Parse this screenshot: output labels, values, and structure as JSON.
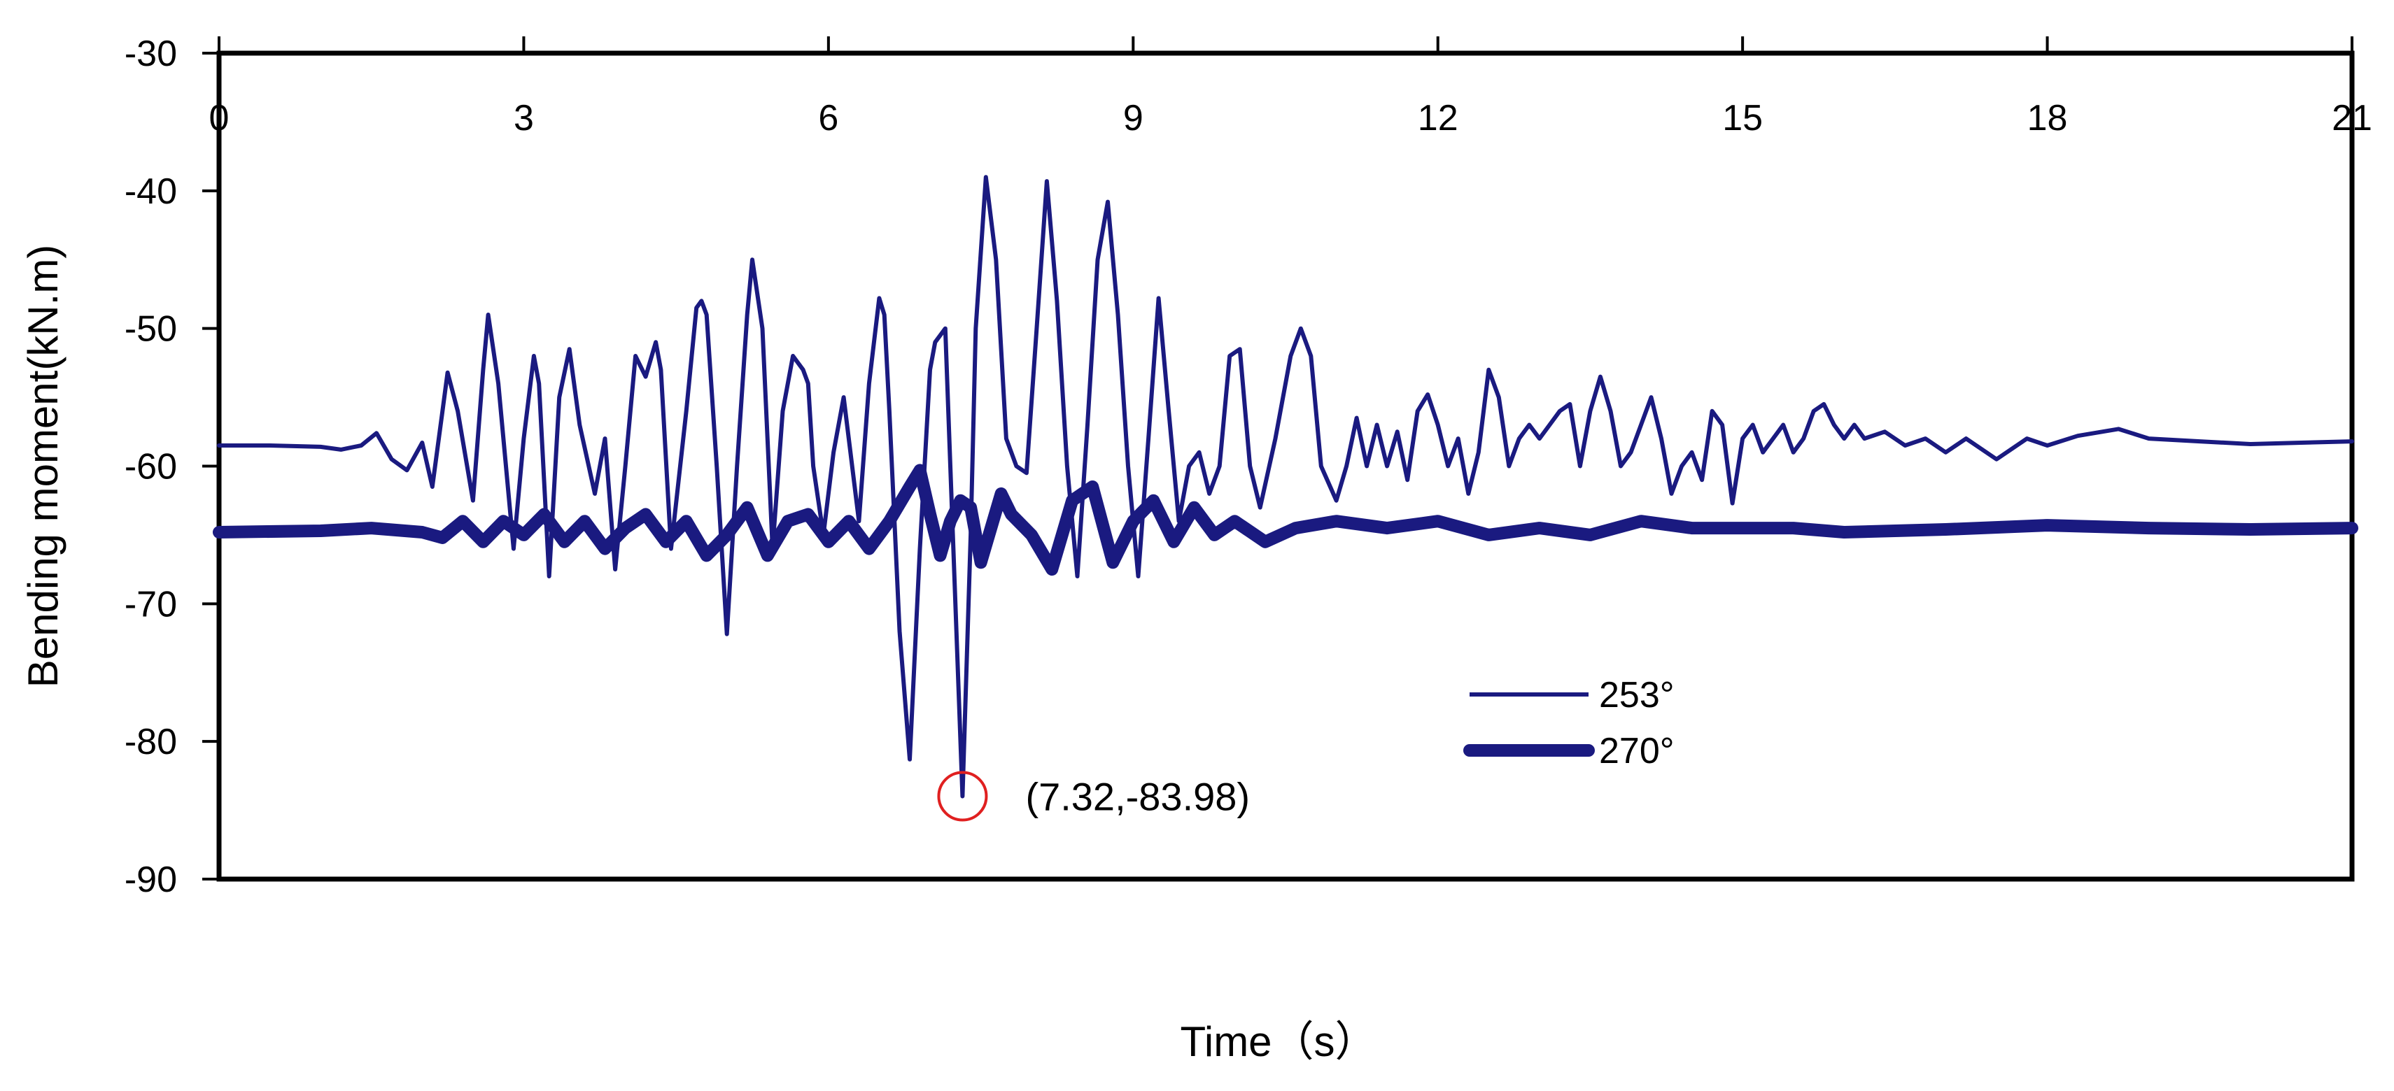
{
  "chart_data": {
    "type": "line",
    "title": "",
    "xlabel": "Time（s）",
    "ylabel": "Bending moment(kN.m)",
    "xlim": [
      0,
      21
    ],
    "ylim": [
      -90,
      -30
    ],
    "x_ticks": [
      0,
      3,
      6,
      9,
      12,
      15,
      18,
      21
    ],
    "x_tick_labels": [
      "0",
      "3",
      "6",
      "9",
      "12",
      "15",
      "18",
      "21"
    ],
    "x_axis_position": "top",
    "y_ticks": [
      -30,
      -40,
      -50,
      -60,
      -70,
      -80,
      -90
    ],
    "y_tick_labels": [
      "-30",
      "-40",
      "-50",
      "-60",
      "-70",
      "-80",
      "-90"
    ],
    "y_axis_reversed": true,
    "grid": false,
    "legend_position": "bottom-center",
    "line_color": "#1a1a80",
    "annotation": {
      "text": "(7.32,-83.98)",
      "x": 7.32,
      "y": -83.98,
      "marker_color": "#e02020"
    },
    "series": [
      {
        "name": "253°",
        "style": "thin",
        "x": [
          0.0,
          0.5,
          1.0,
          1.2,
          1.4,
          1.55,
          1.7,
          1.85,
          2.0,
          2.1,
          2.2,
          2.25,
          2.35,
          2.5,
          2.6,
          2.65,
          2.75,
          2.9,
          3.0,
          3.1,
          3.15,
          3.25,
          3.35,
          3.45,
          3.55,
          3.7,
          3.8,
          3.9,
          4.0,
          4.1,
          4.2,
          4.3,
          4.35,
          4.45,
          4.6,
          4.7,
          4.75,
          4.8,
          4.9,
          5.0,
          5.1,
          5.2,
          5.25,
          5.35,
          5.45,
          5.55,
          5.65,
          5.75,
          5.8,
          5.85,
          5.95,
          6.05,
          6.15,
          6.3,
          6.4,
          6.5,
          6.55,
          6.6,
          6.7,
          6.8,
          6.9,
          7.0,
          7.05,
          7.15,
          7.2,
          7.32,
          7.4,
          7.45,
          7.55,
          7.65,
          7.75,
          7.85,
          7.95,
          8.05,
          8.15,
          8.25,
          8.35,
          8.45,
          8.55,
          8.65,
          8.75,
          8.85,
          8.95,
          9.05,
          9.15,
          9.25,
          9.35,
          9.45,
          9.55,
          9.65,
          9.75,
          9.85,
          9.95,
          10.05,
          10.15,
          10.25,
          10.4,
          10.55,
          10.65,
          10.75,
          10.85,
          11.0,
          11.1,
          11.2,
          11.3,
          11.4,
          11.5,
          11.6,
          11.7,
          11.8,
          11.9,
          12.0,
          12.1,
          12.2,
          12.3,
          12.4,
          12.5,
          12.6,
          12.7,
          12.8,
          12.9,
          13.0,
          13.1,
          13.2,
          13.3,
          13.4,
          13.5,
          13.6,
          13.7,
          13.8,
          13.9,
          14.0,
          14.1,
          14.2,
          14.3,
          14.4,
          14.5,
          14.6,
          14.7,
          14.8,
          14.9,
          15.0,
          15.1,
          15.2,
          15.3,
          15.4,
          15.5,
          15.6,
          15.7,
          15.8,
          15.9,
          16.0,
          16.1,
          16.2,
          16.4,
          16.6,
          16.8,
          17.0,
          17.2,
          17.5,
          17.8,
          18.0,
          18.3,
          18.7,
          19.0,
          19.5,
          20.0,
          20.5,
          21.0
        ],
        "y": [
          -58.5,
          -58.5,
          -58.6,
          -58.8,
          -58.5,
          -57.6,
          -59.5,
          -60.3,
          -58.3,
          -61.5,
          -56.0,
          -53.2,
          -56.0,
          -62.5,
          -53.0,
          -49.0,
          -54.0,
          -66.0,
          -58.0,
          -52.0,
          -54.0,
          -68.0,
          -55.0,
          -51.5,
          -57.0,
          -62.0,
          -58.0,
          -67.5,
          -60.0,
          -52.0,
          -53.5,
          -51.0,
          -53.0,
          -66.0,
          -56.0,
          -48.5,
          -48.0,
          -49.0,
          -60.0,
          -72.2,
          -60.0,
          -49.0,
          -45.0,
          -50.0,
          -66.0,
          -56.0,
          -52.0,
          -53.0,
          -54.0,
          -60.0,
          -65.0,
          -59.0,
          -55.0,
          -64.0,
          -54.0,
          -47.8,
          -49.0,
          -56.0,
          -72.0,
          -81.3,
          -66.0,
          -53.0,
          -51.0,
          -50.0,
          -60.0,
          -83.98,
          -65.0,
          -50.0,
          -39.0,
          -45.0,
          -58.0,
          -60.0,
          -60.5,
          -50.0,
          -39.3,
          -48.0,
          -60.0,
          -68.0,
          -57.0,
          -45.0,
          -40.8,
          -49.0,
          -60.0,
          -68.0,
          -58.0,
          -47.8,
          -56.0,
          -64.0,
          -60.0,
          -59.0,
          -62.0,
          -60.0,
          -52.0,
          -51.5,
          -60.0,
          -63.0,
          -58.0,
          -52.0,
          -50.0,
          -52.0,
          -60.0,
          -62.5,
          -60.0,
          -56.5,
          -60.0,
          -57.0,
          -60.0,
          -57.5,
          -61.0,
          -56.0,
          -54.8,
          -57.0,
          -60.0,
          -58.0,
          -62.0,
          -59.0,
          -53.0,
          -55.0,
          -60.0,
          -58.0,
          -57.0,
          -58.0,
          -57.0,
          -56.0,
          -55.5,
          -60.0,
          -56.0,
          -53.5,
          -56.0,
          -60.0,
          -59.0,
          -57.0,
          -55.0,
          -58.0,
          -62.0,
          -60.0,
          -59.0,
          -61.0,
          -56.0,
          -57.0,
          -62.7,
          -58.0,
          -57.0,
          -59.0,
          -58.0,
          -57.0,
          -59.0,
          -58.0,
          -56.0,
          -55.5,
          -57.0,
          -58.0,
          -57.0,
          -58.0,
          -57.5,
          -58.5,
          -58.0,
          -59.0,
          -58.0,
          -59.5,
          -58.0,
          -58.5,
          -57.8,
          -57.3,
          -58.0,
          -58.2,
          -58.4,
          -58.3,
          -58.2
        ]
      },
      {
        "name": "270°",
        "style": "thick",
        "x": [
          0.0,
          1.0,
          1.5,
          2.0,
          2.2,
          2.4,
          2.6,
          2.8,
          3.0,
          3.2,
          3.4,
          3.6,
          3.8,
          4.0,
          4.2,
          4.4,
          4.6,
          4.8,
          5.0,
          5.2,
          5.4,
          5.6,
          5.8,
          6.0,
          6.2,
          6.4,
          6.6,
          6.8,
          6.9,
          7.0,
          7.1,
          7.2,
          7.3,
          7.4,
          7.5,
          7.6,
          7.7,
          7.8,
          8.0,
          8.2,
          8.4,
          8.6,
          8.8,
          9.0,
          9.2,
          9.4,
          9.6,
          9.8,
          10.0,
          10.3,
          10.6,
          11.0,
          11.5,
          12.0,
          12.5,
          13.0,
          13.5,
          14.0,
          14.5,
          15.0,
          15.5,
          16.0,
          17.0,
          18.0,
          19.0,
          20.0,
          21.0
        ],
        "y": [
          -64.8,
          -64.7,
          -64.5,
          -64.8,
          -65.2,
          -64.0,
          -65.5,
          -64.0,
          -65.0,
          -63.5,
          -65.5,
          -64.0,
          -66.0,
          -64.5,
          -63.5,
          -65.5,
          -64.0,
          -66.5,
          -65.0,
          -63.0,
          -66.5,
          -64.0,
          -63.5,
          -65.5,
          -64.0,
          -66.0,
          -64.0,
          -61.5,
          -60.3,
          -63.5,
          -66.5,
          -64.0,
          -62.5,
          -63.0,
          -67.0,
          -64.5,
          -62.0,
          -63.5,
          -65.0,
          -67.5,
          -62.5,
          -61.5,
          -67.0,
          -64.0,
          -62.5,
          -65.5,
          -63.0,
          -65.0,
          -64.0,
          -65.5,
          -64.5,
          -64.0,
          -64.5,
          -64.0,
          -65.0,
          -64.5,
          -65.0,
          -64.0,
          -64.5,
          -64.5,
          -64.5,
          -64.8,
          -64.6,
          -64.3,
          -64.5,
          -64.6,
          -64.5
        ]
      }
    ]
  }
}
